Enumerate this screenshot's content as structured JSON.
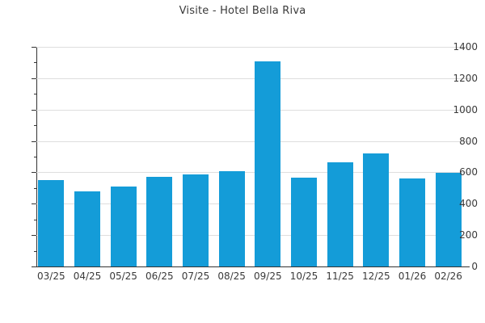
{
  "chart_data": {
    "type": "bar",
    "title": "Visite - Hotel Bella Riva",
    "categories": [
      "03/25",
      "04/25",
      "05/25",
      "06/25",
      "07/25",
      "08/25",
      "09/25",
      "10/25",
      "11/25",
      "12/25",
      "01/26",
      "02/26"
    ],
    "values": [
      550,
      480,
      510,
      570,
      585,
      605,
      1310,
      565,
      665,
      720,
      560,
      595
    ],
    "xlabel": "",
    "ylabel": "",
    "ylim": [
      0,
      1400
    ],
    "yticks": [
      0,
      200,
      400,
      600,
      800,
      1000,
      1200,
      1400
    ],
    "y_minor_step": 100,
    "grid": "horizontal-major",
    "legend": "none",
    "colors": {
      "bar": "#149cd8",
      "grid": "#dedede",
      "axis": "#333333",
      "text": "#3a3a3a",
      "background": "#ffffff"
    }
  }
}
